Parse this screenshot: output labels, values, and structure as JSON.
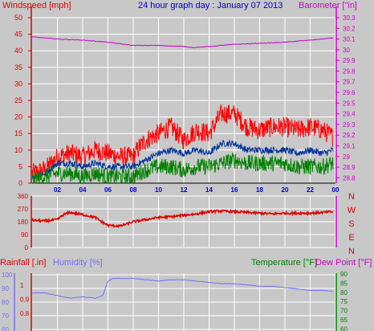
{
  "colors": {
    "background": "#c8c8c8",
    "plot_bg": "#c8c8c8",
    "grid": "#ffffff",
    "windspeed_axis": "#e00000",
    "barometer_axis": "#d000d0",
    "title": "#0000cc",
    "gust": "#ff0000",
    "average": "#003399",
    "windspeed": "#008000",
    "barometer": "#cc00cc",
    "direction": "#e00000",
    "rainfall": "#e00000",
    "humidity": "#7070ff",
    "temperature": "#008000",
    "dewpoint": "#cc00cc"
  },
  "chart_data": [
    {
      "type": "line",
      "title": "24 hour graph day : January 07 2013",
      "ylabel": "Windspeed [mph]",
      "y2label": "Barometer [\"in]",
      "x_ticks": [
        "02",
        "04",
        "06",
        "08",
        "10",
        "12",
        "14",
        "16",
        "18",
        "20",
        "22",
        "00"
      ],
      "x_range": [
        0,
        24
      ],
      "ylim": [
        0,
        50
      ],
      "y_ticks": [
        0,
        5,
        10,
        15,
        20,
        25,
        30,
        35,
        40,
        45,
        50
      ],
      "y2lim": [
        28.75,
        30.3
      ],
      "y2_ticks": [
        "28.8",
        "28.9",
        "29",
        "29.1",
        "29.2",
        "29.3",
        "29.4",
        "29.5",
        "29.6",
        "29.7",
        "29.8",
        "29.9",
        "30",
        "30.1",
        "30.2",
        "30.3"
      ],
      "grid": true,
      "series": [
        {
          "color_key": "gust",
          "axis": "left",
          "noise": 3.0,
          "x": [
            0,
            1,
            2,
            3,
            4,
            5,
            6,
            7,
            8,
            8.5,
            9,
            10,
            11,
            12,
            13,
            14,
            15,
            16,
            17,
            18,
            19,
            20,
            21,
            22,
            23,
            23.8
          ],
          "values": [
            3,
            4,
            8,
            9,
            8,
            10,
            9,
            8,
            8,
            11,
            13,
            15,
            17,
            13,
            16,
            15,
            21,
            21,
            17,
            16,
            17,
            17,
            16,
            17,
            16,
            14
          ]
        },
        {
          "color_key": "average",
          "axis": "left",
          "noise": 1.0,
          "x": [
            0,
            1,
            2,
            3,
            4,
            5,
            6,
            7,
            8,
            8.5,
            9,
            10,
            11,
            12,
            13,
            14,
            15,
            16,
            17,
            18,
            19,
            20,
            21,
            22,
            23,
            23.8
          ],
          "values": [
            2,
            3,
            6,
            6,
            5,
            6,
            5,
            5,
            5,
            6,
            7,
            9,
            10,
            9,
            10,
            9,
            12,
            12,
            10,
            10,
            10,
            10,
            9,
            10,
            9,
            10
          ]
        },
        {
          "color_key": "windspeed",
          "axis": "left",
          "noise": 2.5,
          "x": [
            0,
            1,
            2,
            3,
            4,
            5,
            6,
            7,
            8,
            8.5,
            9,
            10,
            11,
            12,
            13,
            14,
            15,
            16,
            17,
            18,
            19,
            20,
            21,
            22,
            23,
            23.8
          ],
          "values": [
            1,
            2,
            3,
            3,
            2,
            3,
            2,
            2,
            2,
            3,
            4,
            5,
            5,
            4,
            5,
            5,
            6,
            7,
            6,
            6,
            6,
            6,
            5,
            5,
            5,
            6
          ]
        },
        {
          "color_key": "barometer",
          "axis": "right",
          "noise": 0.003,
          "x": [
            0,
            2,
            4,
            6,
            8,
            10,
            12,
            12.8,
            14,
            16,
            18,
            20,
            22,
            23.8
          ],
          "values": [
            30.12,
            30.1,
            30.09,
            30.07,
            30.04,
            30.04,
            30.03,
            30.02,
            30.03,
            30.05,
            30.06,
            30.07,
            30.09,
            30.11
          ]
        }
      ]
    },
    {
      "type": "line",
      "direction_labels": [
        "N",
        "W",
        "S",
        "E",
        "N"
      ],
      "ylim": [
        0,
        360
      ],
      "y_ticks": [
        0,
        90,
        180,
        270,
        360
      ],
      "grid": true,
      "series": [
        {
          "color_key": "direction",
          "noise": 8,
          "x": [
            0,
            1,
            2,
            2.5,
            3,
            4,
            5,
            5.5,
            6,
            7,
            8,
            9,
            10,
            11,
            12,
            13,
            14,
            15,
            16,
            17,
            18,
            19,
            20,
            21,
            22,
            23,
            23.8
          ],
          "values": [
            190,
            185,
            195,
            230,
            245,
            230,
            210,
            180,
            155,
            150,
            180,
            195,
            210,
            215,
            225,
            235,
            250,
            255,
            250,
            245,
            240,
            235,
            240,
            240,
            240,
            245,
            250
          ]
        }
      ]
    },
    {
      "type": "line",
      "ylabel": "Rainfall [.in]",
      "ylabel2": "Humidity [%]",
      "y2label": "Temperature [°F]",
      "y3label": "Dew Point [°F]",
      "rain_ticks": [
        "1",
        "0.9",
        "0.8"
      ],
      "humidity_ticks": [
        "100",
        "90",
        "80",
        "70",
        "60"
      ],
      "ylim_humidity": [
        57,
        101
      ],
      "right_ticks": [
        "90",
        "85",
        "80",
        "75",
        "70",
        "65",
        "60"
      ],
      "grid": true,
      "series": [
        {
          "color_key": "humidity",
          "noise": 0.2,
          "x": [
            0,
            1,
            2,
            3,
            4,
            5,
            5.6,
            6,
            6.4,
            7,
            8,
            9,
            10,
            11,
            12,
            13,
            14,
            15,
            16,
            17,
            18,
            19,
            20,
            21,
            22,
            23,
            23.8
          ],
          "values": [
            86,
            86,
            84,
            82,
            83,
            82,
            84,
            95,
            97,
            97,
            97,
            96,
            95,
            96,
            96,
            95,
            94,
            93,
            93,
            92,
            91,
            91,
            90,
            89,
            88,
            88,
            87
          ]
        }
      ]
    }
  ]
}
